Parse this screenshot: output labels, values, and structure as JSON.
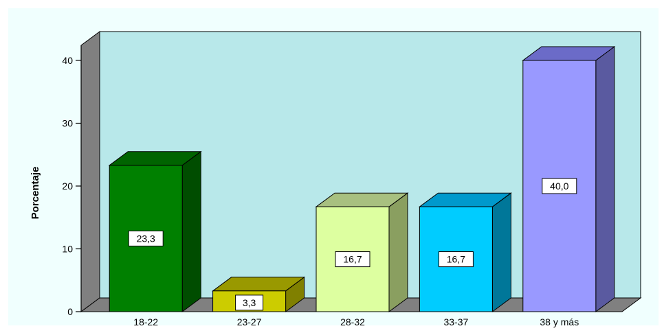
{
  "chart_data": {
    "type": "bar",
    "ylabel": "Porcentaje",
    "xlabel": "",
    "ylim": [
      0,
      40
    ],
    "yticks": [
      "0",
      "10",
      "20",
      "30",
      "40"
    ],
    "categories": [
      "18-22",
      "23-27",
      "28-32",
      "33-37",
      "38 y más"
    ],
    "values": [
      23.3,
      3.3,
      16.7,
      16.7,
      40.0
    ],
    "value_labels": [
      "23,3",
      "3,3",
      "16,7",
      "16,7",
      "40,0"
    ],
    "bar_colors": [
      "#008000",
      "#cccc00",
      "#ddffa0",
      "#00ccff",
      "#9999ff"
    ],
    "bar_top_colors": [
      "#006400",
      "#999900",
      "#a8c080",
      "#0099cc",
      "#6b6bc8"
    ],
    "bar_side_colors": [
      "#004d00",
      "#808000",
      "#8a9f60",
      "#007799",
      "#5a5aa0"
    ],
    "plot_background": "#b8e8ea",
    "outer_background": "#f0fffe",
    "wall_color": "#808080",
    "grid": false,
    "style": "3d"
  }
}
